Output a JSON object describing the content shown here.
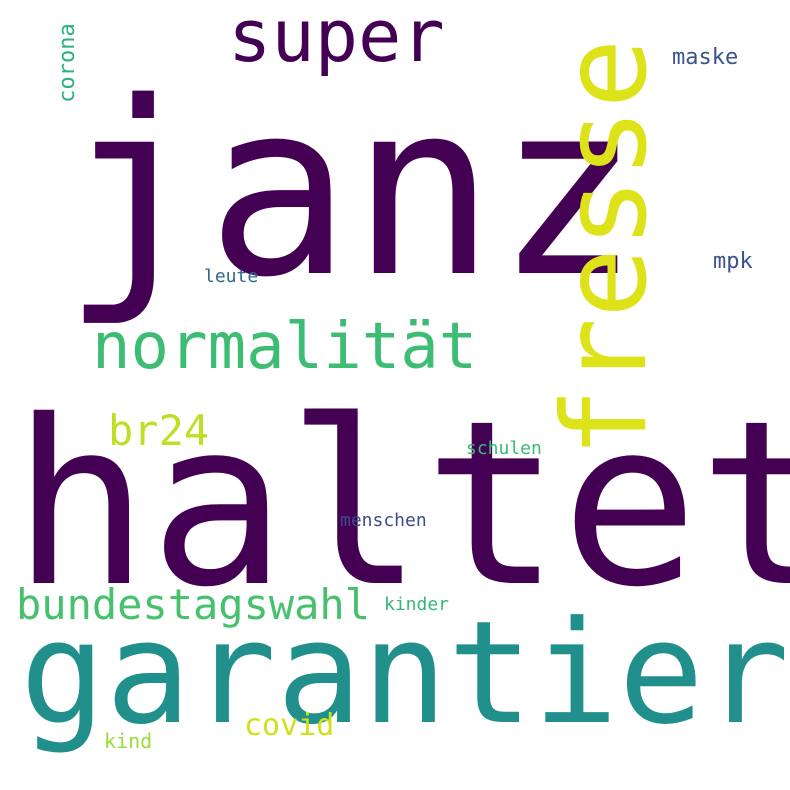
{
  "words": {
    "janz": {
      "text": "janz",
      "color": "#440154"
    },
    "haltet": {
      "text": "haltet",
      "color": "#440154"
    },
    "garantiert": {
      "text": "garantiert",
      "color": "#21908c"
    },
    "fresse": {
      "text": "fresse",
      "color": "#dde318"
    },
    "super": {
      "text": "super",
      "color": "#440154"
    },
    "normalitaet": {
      "text": "normalität",
      "color": "#3dbc74"
    },
    "br24": {
      "text": "br24",
      "color": "#bddf26"
    },
    "bundestagswahl": {
      "text": "bundestagswahl",
      "color": "#47c16e"
    },
    "maske": {
      "text": "maske",
      "color": "#3b528b"
    },
    "mpk": {
      "text": "mpk",
      "color": "#3b528b"
    },
    "corona": {
      "text": "corona",
      "color": "#2db27d"
    },
    "leute": {
      "text": "leute",
      "color": "#31688e"
    },
    "schulen": {
      "text": "schulen",
      "color": "#3aba76"
    },
    "menschen": {
      "text": "menschen",
      "color": "#3e4a89"
    },
    "kinder": {
      "text": "kinder",
      "color": "#35b779"
    },
    "covid": {
      "text": "covid",
      "color": "#d0e11c"
    },
    "kind": {
      "text": "kind",
      "color": "#9bd93c"
    }
  }
}
